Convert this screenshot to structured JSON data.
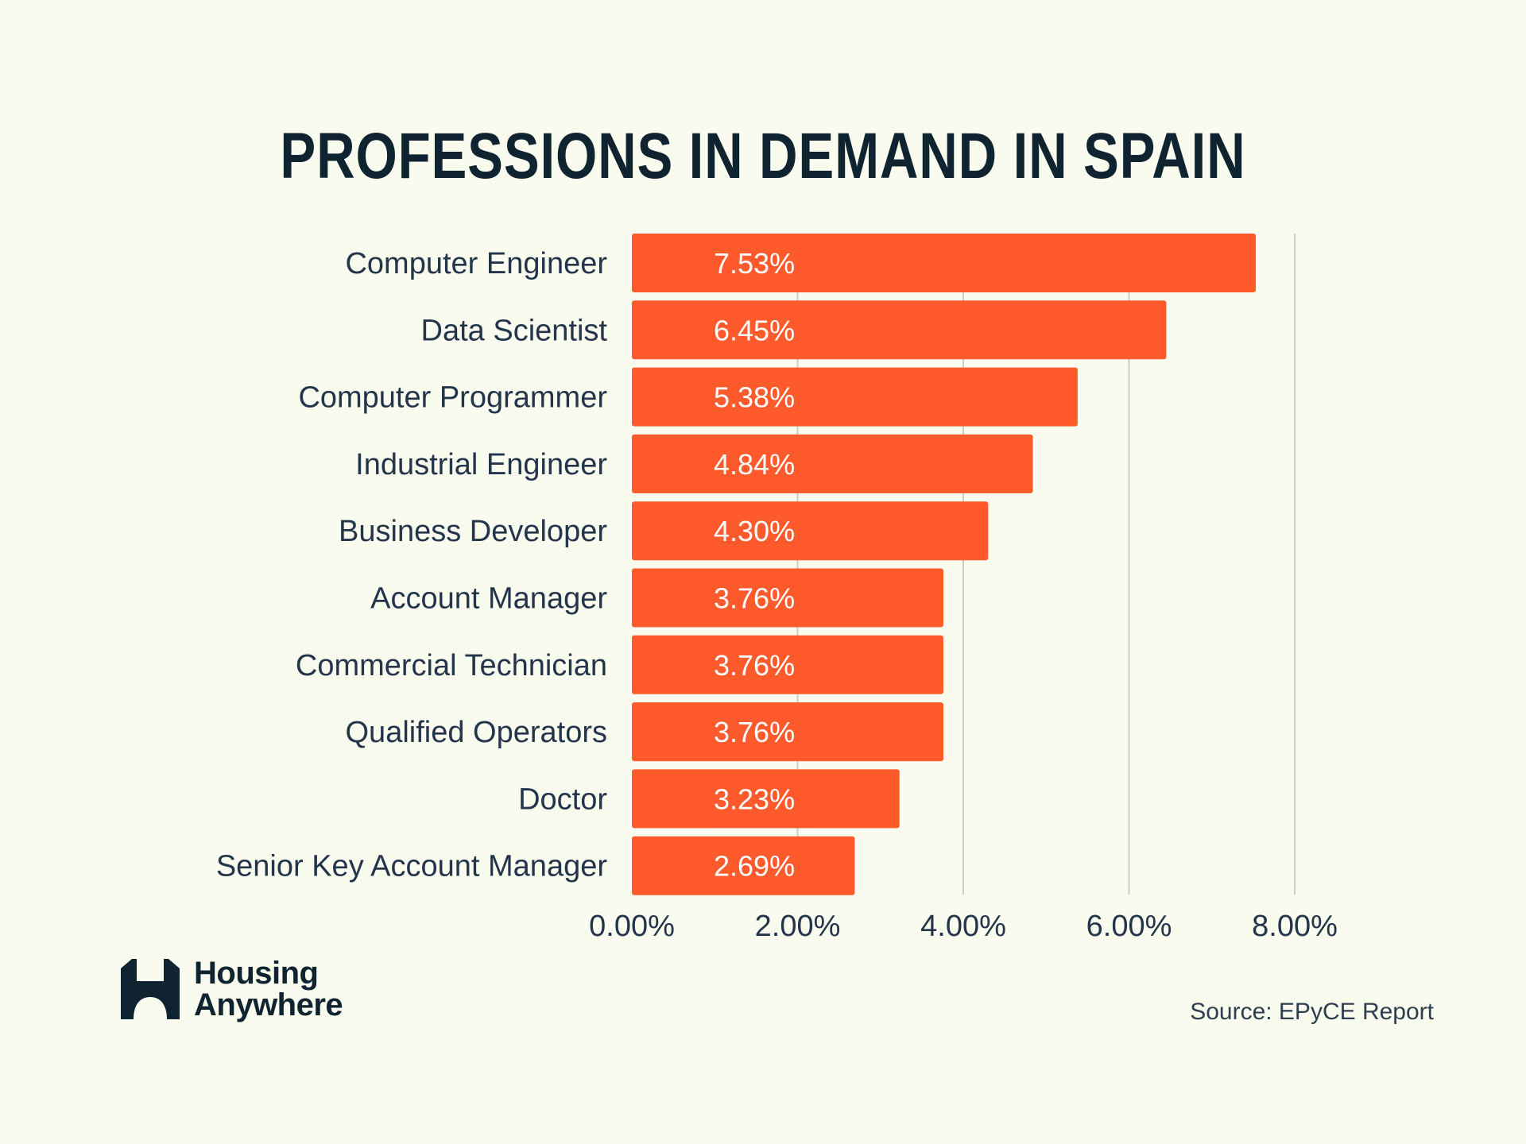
{
  "chart_data": {
    "type": "bar",
    "orientation": "horizontal",
    "title": "PROFESSIONS IN DEMAND IN SPAIN",
    "categories": [
      "Computer Engineer",
      "Data Scientist",
      "Computer Programmer",
      "Industrial Engineer",
      "Business Developer",
      "Account Manager",
      "Commercial Technician",
      "Qualified Operators",
      "Doctor",
      "Senior Key Account Manager"
    ],
    "values": [
      7.53,
      6.45,
      5.38,
      4.84,
      4.3,
      3.76,
      3.76,
      3.76,
      3.23,
      2.69
    ],
    "value_labels": [
      "7.53%",
      "6.45%",
      "5.38%",
      "4.84%",
      "4.30%",
      "3.76%",
      "3.76%",
      "3.76%",
      "3.23%",
      "2.69%"
    ],
    "xticks": [
      0,
      2,
      4,
      6,
      8
    ],
    "xtick_labels": [
      "0.00%",
      "2.00%",
      "4.00%",
      "6.00%",
      "8.00%"
    ],
    "xlim": [
      0,
      8
    ],
    "xlabel": "",
    "ylabel": "",
    "grid": "vertical",
    "colors": {
      "bar": "#ff5a2c",
      "background": "#f8fbee",
      "text": "#24344a"
    }
  },
  "branding": {
    "logo_line1": "Housing",
    "logo_line2": "Anywhere",
    "logo_icon": "housing-anywhere-logo-icon"
  },
  "source": "Source: EPyCE Report"
}
